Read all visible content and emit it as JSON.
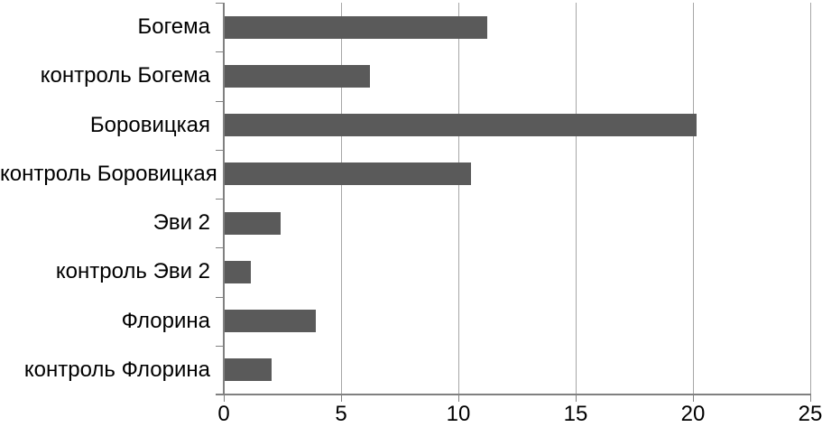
{
  "chart_data": {
    "type": "bar",
    "orientation": "horizontal",
    "title": "",
    "xlabel": "",
    "ylabel": "",
    "categories": [
      "Богема",
      "контроль Богема",
      "Боровицкая",
      "контроль Боровицкая",
      "Эви 2",
      "контроль Эви 2",
      "Флорина",
      "контроль Флорина"
    ],
    "values": [
      11.2,
      6.2,
      20.1,
      10.5,
      2.4,
      1.1,
      3.9,
      2.0
    ],
    "xlim": [
      0,
      25
    ],
    "x_ticks": [
      0,
      5,
      10,
      15,
      20,
      25
    ],
    "x_tick_labels": [
      "0",
      "5",
      "10",
      "15",
      "20",
      "25"
    ],
    "grid": "vertical gridlines at each x tick",
    "legend": "none",
    "colors": {
      "bar": "#5a5a5a",
      "gridline": "#a6a6a6",
      "axis": "#808080",
      "text": "#000000",
      "background": "#ffffff"
    }
  }
}
